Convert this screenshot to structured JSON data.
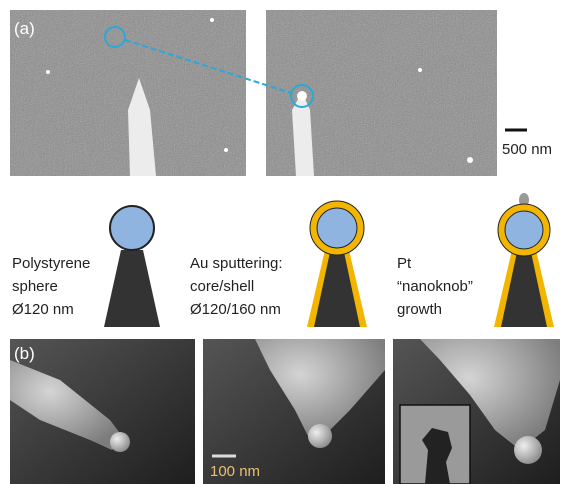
{
  "panel_a": {
    "label": "(a)",
    "scale_bar": "500 nm"
  },
  "schematic": {
    "steps": [
      {
        "lines": [
          "Polystyrene",
          "sphere",
          "Ø120 nm"
        ]
      },
      {
        "lines": [
          "Au sputtering:",
          "core/shell",
          "Ø120/160 nm"
        ]
      },
      {
        "lines": [
          "Pt",
          "“nanoknob”",
          "growth"
        ]
      }
    ]
  },
  "panel_b": {
    "label": "(b)",
    "scale_bar": "100 nm"
  }
}
